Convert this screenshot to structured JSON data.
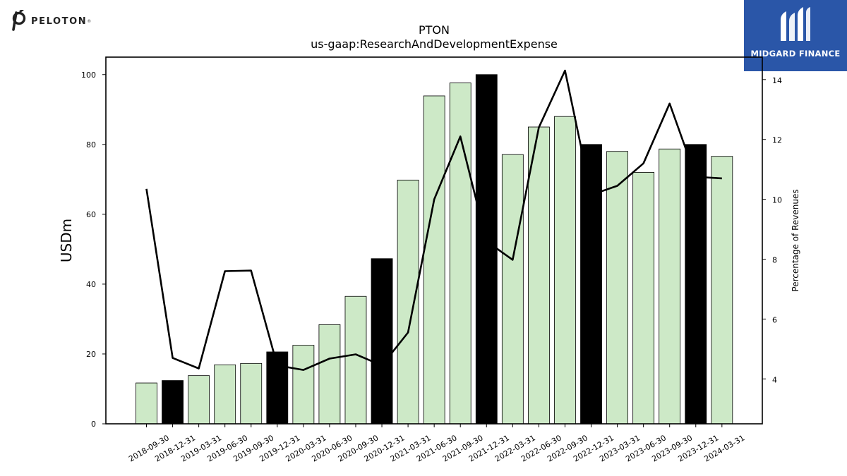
{
  "brand": {
    "company_logo": "PELOTON",
    "publisher_logo": "MIDGARD FINANCE"
  },
  "chart_data": {
    "type": "bar",
    "title": "PTON",
    "subtitle": "us-gaap:ResearchAndDevelopmentExpense",
    "ylabel": "USDm",
    "y2label": "Percentage of Revenues",
    "ylim": [
      0,
      105
    ],
    "y2lim": [
      2.5,
      14.75
    ],
    "yticks": [
      0,
      20,
      40,
      60,
      80,
      100
    ],
    "y2ticks": [
      4,
      6,
      8,
      10,
      12,
      14
    ],
    "grid": false,
    "categories": [
      "2018-09-30",
      "2018-12-31",
      "2019-03-31",
      "2019-06-30",
      "2019-09-30",
      "2019-12-31",
      "2020-03-31",
      "2020-06-30",
      "2020-09-30",
      "2020-12-31",
      "2021-03-31",
      "2021-06-30",
      "2021-09-30",
      "2021-12-31",
      "2022-03-31",
      "2022-06-30",
      "2022-09-30",
      "2022-12-31",
      "2023-03-31",
      "2023-06-30",
      "2023-09-30",
      "2023-12-31",
      "2024-03-31"
    ],
    "series": [
      {
        "kind": "bar",
        "axis": "left",
        "values": [
          11.7,
          12.4,
          13.8,
          16.9,
          17.3,
          20.6,
          22.5,
          28.4,
          36.5,
          47.3,
          69.8,
          93.9,
          97.6,
          100.0,
          77.1,
          85.0,
          88.0,
          80.0,
          78.0,
          72.0,
          78.7,
          80.0,
          76.6
        ],
        "highlight_color": "#000000",
        "color": "#cde9c7",
        "highlighted_categories": [
          "2018-12-31",
          "2019-12-31",
          "2020-12-31",
          "2021-12-31",
          "2022-12-31",
          "2023-12-31"
        ]
      },
      {
        "kind": "line",
        "axis": "right",
        "color": "#000000",
        "values": [
          10.35,
          4.7,
          4.35,
          7.6,
          7.62,
          4.45,
          4.3,
          4.68,
          4.82,
          4.45,
          5.55,
          10.0,
          12.1,
          8.6,
          7.98,
          12.4,
          14.3,
          10.15,
          10.45,
          11.2,
          13.2,
          10.75,
          10.7
        ]
      }
    ]
  }
}
